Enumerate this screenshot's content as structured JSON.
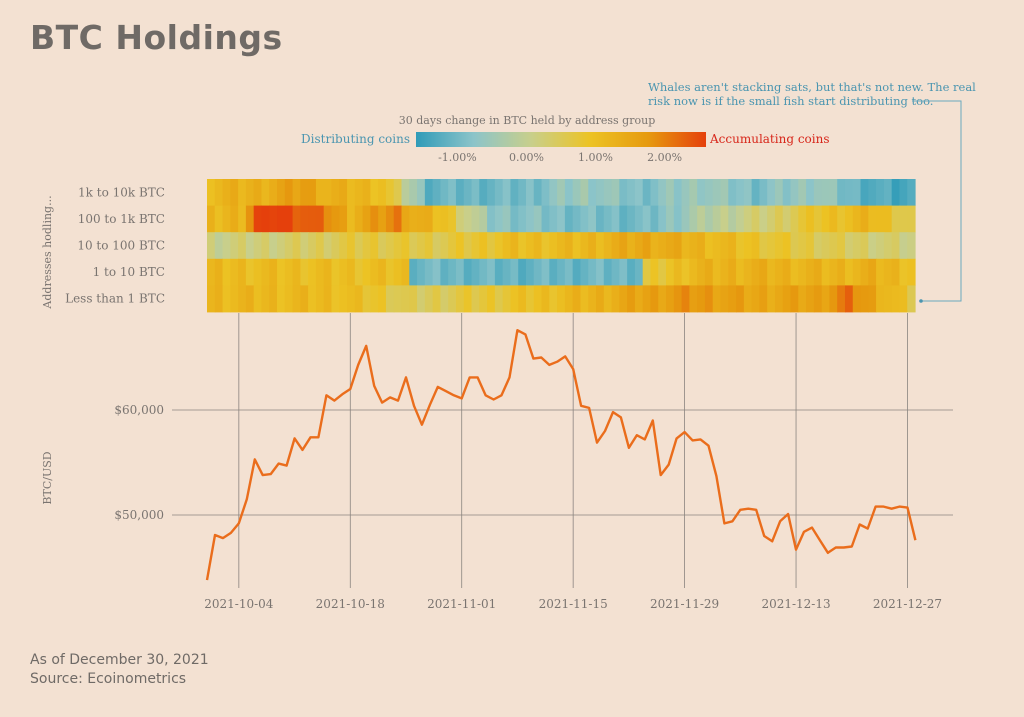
{
  "title": "BTC Holdings",
  "footer": {
    "as_of": "As of December 30, 2021",
    "source": "Source: Ecoinometrics"
  },
  "chart_data": [
    {
      "type": "heatmap",
      "title": "30 days change in BTC held by address group",
      "ylabel": "Addresses hodling...",
      "rows": [
        "1k to 10k BTC",
        "100 to 1k BTC",
        "10 to 100 BTC",
        "1 to 10 BTC",
        "Less than 1 BTC"
      ],
      "x_start": "2021-09-30",
      "x_end": "2021-12-29",
      "legend": {
        "left_label": "Distributing coins",
        "right_label": "Accumulating coins",
        "ticks": [
          "-1.00%",
          "0.00%",
          "1.00%",
          "2.00%"
        ],
        "tick_values": [
          -1,
          0,
          1,
          2
        ],
        "range": [
          -1.6,
          2.6
        ],
        "colors": [
          "#2f9bb8",
          "#8cc4c9",
          "#c9cf8a",
          "#ecc324",
          "#e69a0f",
          "#e5400c"
        ]
      },
      "values": [
        [
          [
            0,
            1.2
          ],
          [
            6,
            1.3
          ],
          [
            12,
            1.7
          ],
          [
            15,
            1.3
          ],
          [
            22,
            1.1
          ],
          [
            28,
            -1.1
          ],
          [
            40,
            -1.0
          ],
          [
            48,
            -0.5
          ],
          [
            55,
            -0.9
          ],
          [
            63,
            -0.5
          ],
          [
            70,
            -0.9
          ],
          [
            78,
            -0.5
          ],
          [
            83,
            -1.1
          ],
          [
            88,
            -1.4
          ],
          [
            91,
            -1.4
          ]
        ],
        [
          [
            0,
            1.1
          ],
          [
            4,
            1.3
          ],
          [
            6,
            2.5
          ],
          [
            8,
            2.7
          ],
          [
            12,
            2.4
          ],
          [
            15,
            2.0
          ],
          [
            18,
            1.3
          ],
          [
            24,
            2.0
          ],
          [
            26,
            1.4
          ],
          [
            30,
            1.0
          ],
          [
            36,
            -0.7
          ],
          [
            46,
            -0.9
          ],
          [
            56,
            -1.0
          ],
          [
            64,
            -0.2
          ],
          [
            72,
            0.3
          ],
          [
            78,
            0.9
          ],
          [
            85,
            1.2
          ],
          [
            91,
            0.4
          ]
        ],
        [
          [
            0,
            0.1
          ],
          [
            10,
            0.3
          ],
          [
            20,
            0.7
          ],
          [
            30,
            0.6
          ],
          [
            38,
            1.0
          ],
          [
            47,
            1.1
          ],
          [
            56,
            1.5
          ],
          [
            64,
            1.2
          ],
          [
            72,
            0.8
          ],
          [
            80,
            0.5
          ],
          [
            91,
            0.1
          ]
        ],
        [
          [
            0,
            1.1
          ],
          [
            20,
            1.0
          ],
          [
            25,
            1.0
          ],
          [
            26,
            -1.0
          ],
          [
            40,
            -1.1
          ],
          [
            55,
            -1.0
          ],
          [
            56,
            0.6
          ],
          [
            62,
            1.2
          ],
          [
            70,
            1.3
          ],
          [
            80,
            1.2
          ],
          [
            85,
            1.3
          ],
          [
            91,
            1.0
          ]
        ],
        [
          [
            0,
            1.2
          ],
          [
            16,
            1.1
          ],
          [
            22,
            0.8
          ],
          [
            26,
            0.4
          ],
          [
            34,
            0.7
          ],
          [
            40,
            0.9
          ],
          [
            48,
            1.2
          ],
          [
            56,
            1.6
          ],
          [
            62,
            1.8
          ],
          [
            70,
            1.5
          ],
          [
            78,
            1.6
          ],
          [
            82,
            2.1
          ],
          [
            86,
            1.4
          ],
          [
            91,
            0.5
          ]
        ]
      ]
    },
    {
      "type": "line",
      "xlabel": "",
      "ylabel": "BTC/USD",
      "yticks": [
        "$50,000",
        "$60,000"
      ],
      "ytick_values": [
        50000,
        60000
      ],
      "xticks": [
        "2021-10-04",
        "2021-10-18",
        "2021-11-01",
        "2021-11-15",
        "2021-11-29",
        "2021-12-13",
        "2021-12-27"
      ],
      "ylim": [
        44000,
        68000
      ],
      "series": [
        {
          "color": "#ea6d1c",
          "x": [
            "2021-09-30",
            "2021-10-01",
            "2021-10-02",
            "2021-10-03",
            "2021-10-04",
            "2021-10-05",
            "2021-10-06",
            "2021-10-07",
            "2021-10-08",
            "2021-10-09",
            "2021-10-10",
            "2021-10-11",
            "2021-10-12",
            "2021-10-13",
            "2021-10-14",
            "2021-10-15",
            "2021-10-16",
            "2021-10-17",
            "2021-10-18",
            "2021-10-19",
            "2021-10-20",
            "2021-10-21",
            "2021-10-22",
            "2021-10-23",
            "2021-10-24",
            "2021-10-25",
            "2021-10-26",
            "2021-10-27",
            "2021-10-28",
            "2021-10-29",
            "2021-10-30",
            "2021-10-31",
            "2021-11-01",
            "2021-11-02",
            "2021-11-03",
            "2021-11-04",
            "2021-11-05",
            "2021-11-06",
            "2021-11-07",
            "2021-11-08",
            "2021-11-09",
            "2021-11-10",
            "2021-11-11",
            "2021-11-12",
            "2021-11-13",
            "2021-11-14",
            "2021-11-15",
            "2021-11-16",
            "2021-11-17",
            "2021-11-18",
            "2021-11-19",
            "2021-11-20",
            "2021-11-21",
            "2021-11-22",
            "2021-11-23",
            "2021-11-24",
            "2021-11-25",
            "2021-11-26",
            "2021-11-27",
            "2021-11-28",
            "2021-11-29",
            "2021-11-30",
            "2021-12-01",
            "2021-12-02",
            "2021-12-03",
            "2021-12-04",
            "2021-12-05",
            "2021-12-06",
            "2021-12-07",
            "2021-12-08",
            "2021-12-09",
            "2021-12-10",
            "2021-12-11",
            "2021-12-12",
            "2021-12-13",
            "2021-12-14",
            "2021-12-15",
            "2021-12-16",
            "2021-12-17",
            "2021-12-18",
            "2021-12-19",
            "2021-12-20",
            "2021-12-21",
            "2021-12-22",
            "2021-12-23",
            "2021-12-24",
            "2021-12-25",
            "2021-12-26",
            "2021-12-27",
            "2021-12-28"
          ],
          "y": [
            43800,
            48100,
            47800,
            48300,
            49200,
            51500,
            55300,
            53800,
            53900,
            54900,
            54700,
            57300,
            56200,
            57400,
            57400,
            61400,
            60900,
            61500,
            62000,
            64300,
            66100,
            62300,
            60700,
            61200,
            60900,
            63100,
            60400,
            58600,
            60500,
            62200,
            61800,
            61400,
            61100,
            63100,
            63100,
            61400,
            61000,
            61400,
            63100,
            67600,
            67200,
            64900,
            65000,
            64300,
            64600,
            65100,
            63900,
            60400,
            60200,
            56900,
            58000,
            59800,
            59300,
            56400,
            57600,
            57200,
            59000,
            53800,
            54800,
            57300,
            57900,
            57100,
            57200,
            56600,
            53700,
            49200,
            49400,
            50500,
            50600,
            50500,
            48000,
            47500,
            49400,
            50100,
            46700,
            48400,
            48800,
            47600,
            46400,
            46900,
            46900,
            47000,
            49100,
            48700,
            50800,
            50800,
            50600,
            50800,
            50700,
            47600
          ]
        }
      ]
    }
  ],
  "annotation": {
    "line1": "Whales aren't stacking sats, but that's not new. The real",
    "line2": "risk now is if the small fish start distributing too."
  },
  "colors": {
    "background": "#f3e1d2",
    "text": "#7a7470",
    "accent": "#4a95b0",
    "accumulate": "#d7261a",
    "line": "#ea6d1c"
  }
}
